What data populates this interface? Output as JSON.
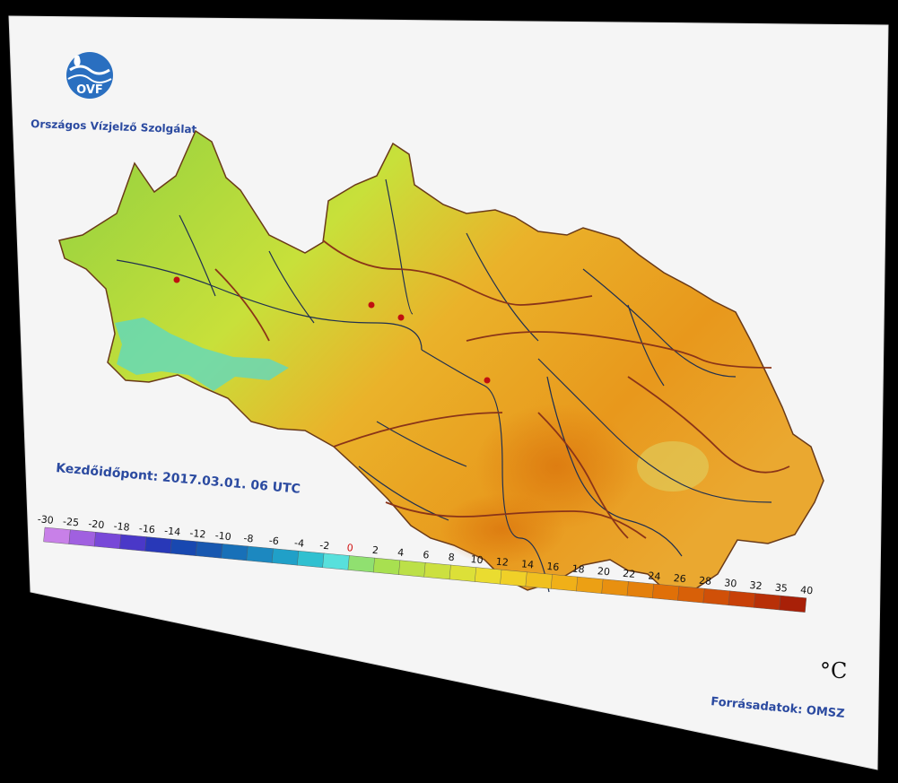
{
  "header": {
    "logo_label": "OVF",
    "org_name": "Országos Vízjelző Szolgálat"
  },
  "map": {
    "start_time": "Kezdőidőpont: 2017.03.01. 06 UTC",
    "unit": "°C",
    "source": "Forrásadatok: OMSZ"
  },
  "legend": {
    "ticks": [
      "-30",
      "-25",
      "-20",
      "-18",
      "-16",
      "-14",
      "-12",
      "-10",
      "-8",
      "-6",
      "-4",
      "-2",
      "0",
      "2",
      "4",
      "6",
      "8",
      "10",
      "12",
      "14",
      "16",
      "18",
      "20",
      "22",
      "24",
      "26",
      "28",
      "30",
      "32",
      "35",
      "40"
    ],
    "colors": [
      "#c880e8",
      "#a060e0",
      "#7848d8",
      "#4a38c8",
      "#2838b8",
      "#1848b0",
      "#1858b0",
      "#1870b8",
      "#1c88c0",
      "#20a0c8",
      "#30c0d0",
      "#58e0dc",
      "#90e070",
      "#a8e050",
      "#bce048",
      "#cce040",
      "#dce038",
      "#eadc30",
      "#f0d028",
      "#f0c020",
      "#f0b018",
      "#eca014",
      "#e89010",
      "#e4800c",
      "#e07008",
      "#d86008",
      "#d05008",
      "#c84008",
      "#b83008",
      "#a82008"
    ]
  }
}
